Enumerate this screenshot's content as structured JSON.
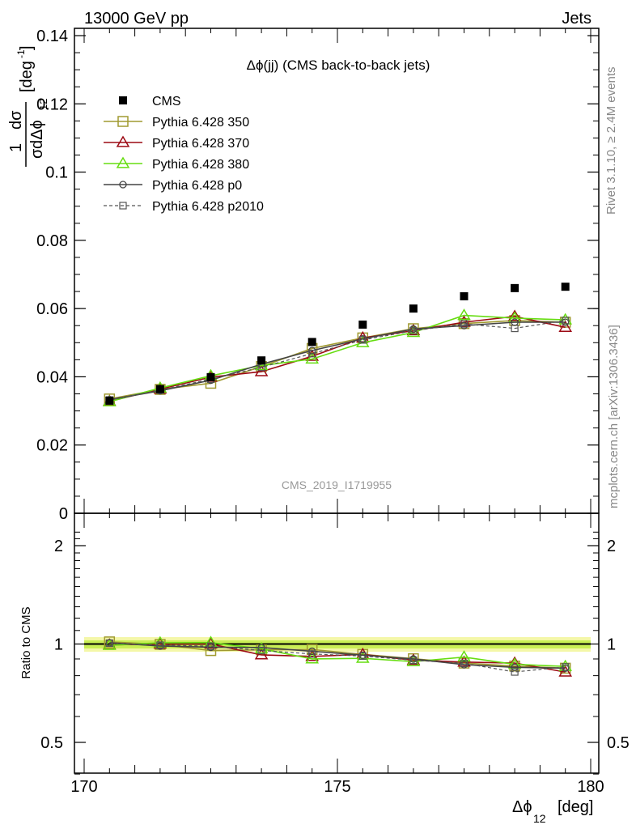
{
  "header": {
    "energy": "13000 GeV pp",
    "category": "Jets"
  },
  "side": {
    "rivet": "Rivet 3.1.10, ≥ 2.4M events",
    "site": "mcplots.cern.ch [arXiv:1306.3436]"
  },
  "analysis_tag": "CMS_2019_I1719955",
  "chart_data": {
    "type": "line",
    "title": "Δϕ(jj) (CMS back-to-back jets)",
    "xlabel": "Δϕ",
    "xlabel_sub": "12",
    "xlabel_unit": "[deg]",
    "ylabel": "1/σ dσ/dΔϕ12 [deg-1]",
    "ratio_ylabel": "Ratio to CMS",
    "xlim": [
      170,
      180
    ],
    "ylim": [
      0,
      0.14
    ],
    "ratio_ylim": [
      0.35,
      2.3
    ],
    "xticks": [
      "170",
      "175",
      "180"
    ],
    "yticks": [
      "0",
      "0.02",
      "0.04",
      "0.06",
      "0.08",
      "0.1",
      "0.12",
      "0.14"
    ],
    "ratio_yticks": [
      "0.5",
      "1",
      "2"
    ],
    "x": [
      170.5,
      171.5,
      172.5,
      173.5,
      174.5,
      175.5,
      176.5,
      177.5,
      178.5,
      179.5
    ],
    "series": [
      {
        "name": "CMS",
        "color": "#000000",
        "marker": "filled-square",
        "values": [
          0.033,
          0.0364,
          0.0399,
          0.0448,
          0.0502,
          0.0553,
          0.06,
          0.0636,
          0.066,
          0.0664
        ]
      },
      {
        "name": "Pythia 6.428 350",
        "color": "#a09a30",
        "marker": "open-square",
        "values": [
          0.0335,
          0.0363,
          0.0381,
          0.043,
          0.0483,
          0.0514,
          0.0541,
          0.0556,
          0.0565,
          0.056
        ]
      },
      {
        "name": "Pythia 6.428 370",
        "color": "#9c0a14",
        "marker": "open-triangle",
        "values": [
          0.0328,
          0.0364,
          0.0399,
          0.0415,
          0.046,
          0.0514,
          0.0535,
          0.056,
          0.0577,
          0.0545
        ]
      },
      {
        "name": "Pythia 6.428 380",
        "color": "#66dd11",
        "marker": "open-triangle",
        "values": [
          0.0327,
          0.0367,
          0.0403,
          0.0433,
          0.0452,
          0.05,
          0.053,
          0.058,
          0.0572,
          0.0567
        ]
      },
      {
        "name": "Pythia 6.428 p0",
        "color": "#444444",
        "marker": "open-circle",
        "values": [
          0.0333,
          0.0359,
          0.039,
          0.0437,
          0.0477,
          0.0511,
          0.054,
          0.055,
          0.056,
          0.056
        ]
      },
      {
        "name": "Pythia 6.428 p2010",
        "color": "#555555",
        "marker": "small-square",
        "dashed": true,
        "values": [
          0.0332,
          0.0361,
          0.0393,
          0.0428,
          0.0468,
          0.0508,
          0.0535,
          0.0555,
          0.0542,
          0.0565
        ]
      }
    ],
    "legend_position": "top-left"
  }
}
